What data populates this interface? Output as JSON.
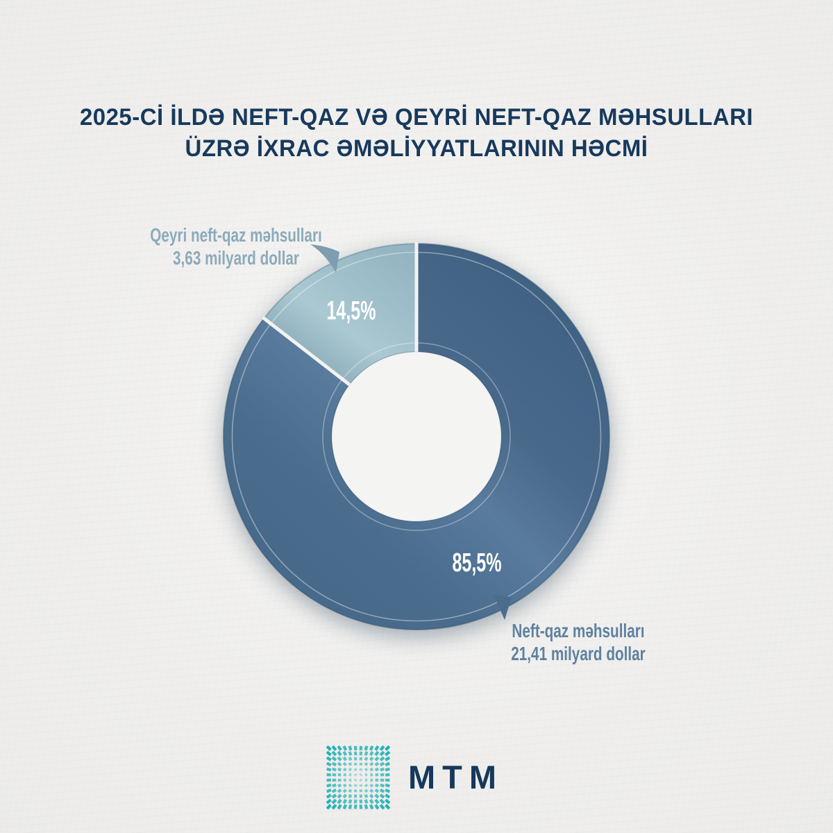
{
  "header": {
    "title_line1": "2025-Cİ İLDƏ NEFT-QAZ VƏ QEYRİ NEFT-QAZ MƏHSULLARI",
    "title_line2": "ÜZRƏ İXRAC ƏMƏLİYYATLARININ HƏCMİ"
  },
  "chart_data": {
    "type": "pie",
    "style": "donut",
    "title": "2025-ci ildə neft-qaz və qeyri neft-qaz məhsulları üzrə ixrac əməliyyatlarının həcmi",
    "categories": [
      "Neft-qaz məhsulları",
      "Qeyri neft-qaz məhsulları"
    ],
    "values": [
      85.5,
      14.5
    ],
    "value_labels": [
      "85,5%",
      "14,5%"
    ],
    "amounts_billion_usd": [
      21.41,
      3.63
    ],
    "amount_labels": [
      "21,41 milyard dollar",
      "3,63 milyard dollar"
    ],
    "colors": [
      "#4c6e8e",
      "#9dbbc7"
    ],
    "start_angle_deg": 0,
    "direction": "clockwise",
    "legend_position": "callouts"
  },
  "slice_labels": {
    "oil_pct": "85,5%",
    "non_oil_pct": "14,5%"
  },
  "callouts": {
    "non_oil": {
      "line1": "Qeyri neft-qaz məhsulları",
      "line2": "3,63 milyard dollar"
    },
    "oil": {
      "line1": "Neft-qaz məhsulları",
      "line2": "21,41 milyard dollar"
    }
  },
  "logo": {
    "text": "MTM"
  },
  "theme": {
    "background": "#efeeec",
    "title_color": "#17395c",
    "oil_slice_color": "#4c6e8e",
    "non_oil_slice_color": "#9dbbc7",
    "non_oil_label_color": "#8caabb",
    "oil_label_color": "#5e81a0",
    "pct_label_color": "#ffffff",
    "logo_teal": "#1fb0b4",
    "logo_text_color": "#16395b"
  }
}
